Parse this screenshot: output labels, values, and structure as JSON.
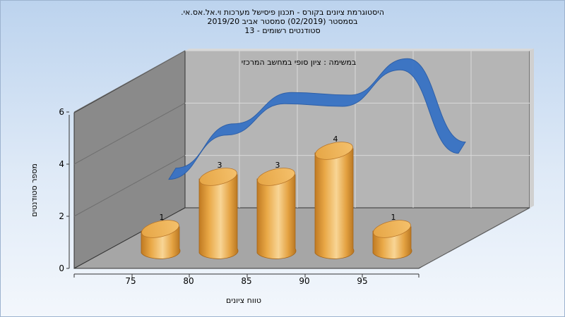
{
  "titles": {
    "line1": "היסטוגרמת ציונים בקורס - תכנון פיסישל מערכות וי.אל.אס.אי.",
    "line2": "בסמסטר (02/2019) סמסטר אביב 2019/20",
    "line3": "סטודנטים רשומים - 13"
  },
  "colors": {
    "bar": "#e8a640",
    "curve": "#3a73c4",
    "wall": "#8a8a8a",
    "back_wall": "#b5b5b5",
    "floor": "#a6a6a6"
  },
  "chart_data": {
    "type": "bar",
    "categories": [
      "75",
      "80",
      "85",
      "90",
      "95"
    ],
    "values": [
      1,
      3,
      3,
      4,
      1
    ],
    "data_labels": [
      "1",
      "3",
      "3",
      "4",
      "1"
    ],
    "y_ticks": [
      "0",
      "2",
      "4",
      "6"
    ],
    "ylim": [
      0,
      6
    ],
    "xlabel": "טווח ציונים",
    "ylabel": "מספר סטודנטים",
    "annotation": "במשימה : ציון סופי במחשב המרכזי",
    "grid": true,
    "curve": {
      "x": [
        72.5,
        77.5,
        82.5,
        87.5,
        92.5,
        97.5
      ],
      "y": [
        1.2,
        2.9,
        4.1,
        4.0,
        5.4,
        2.2
      ]
    }
  }
}
